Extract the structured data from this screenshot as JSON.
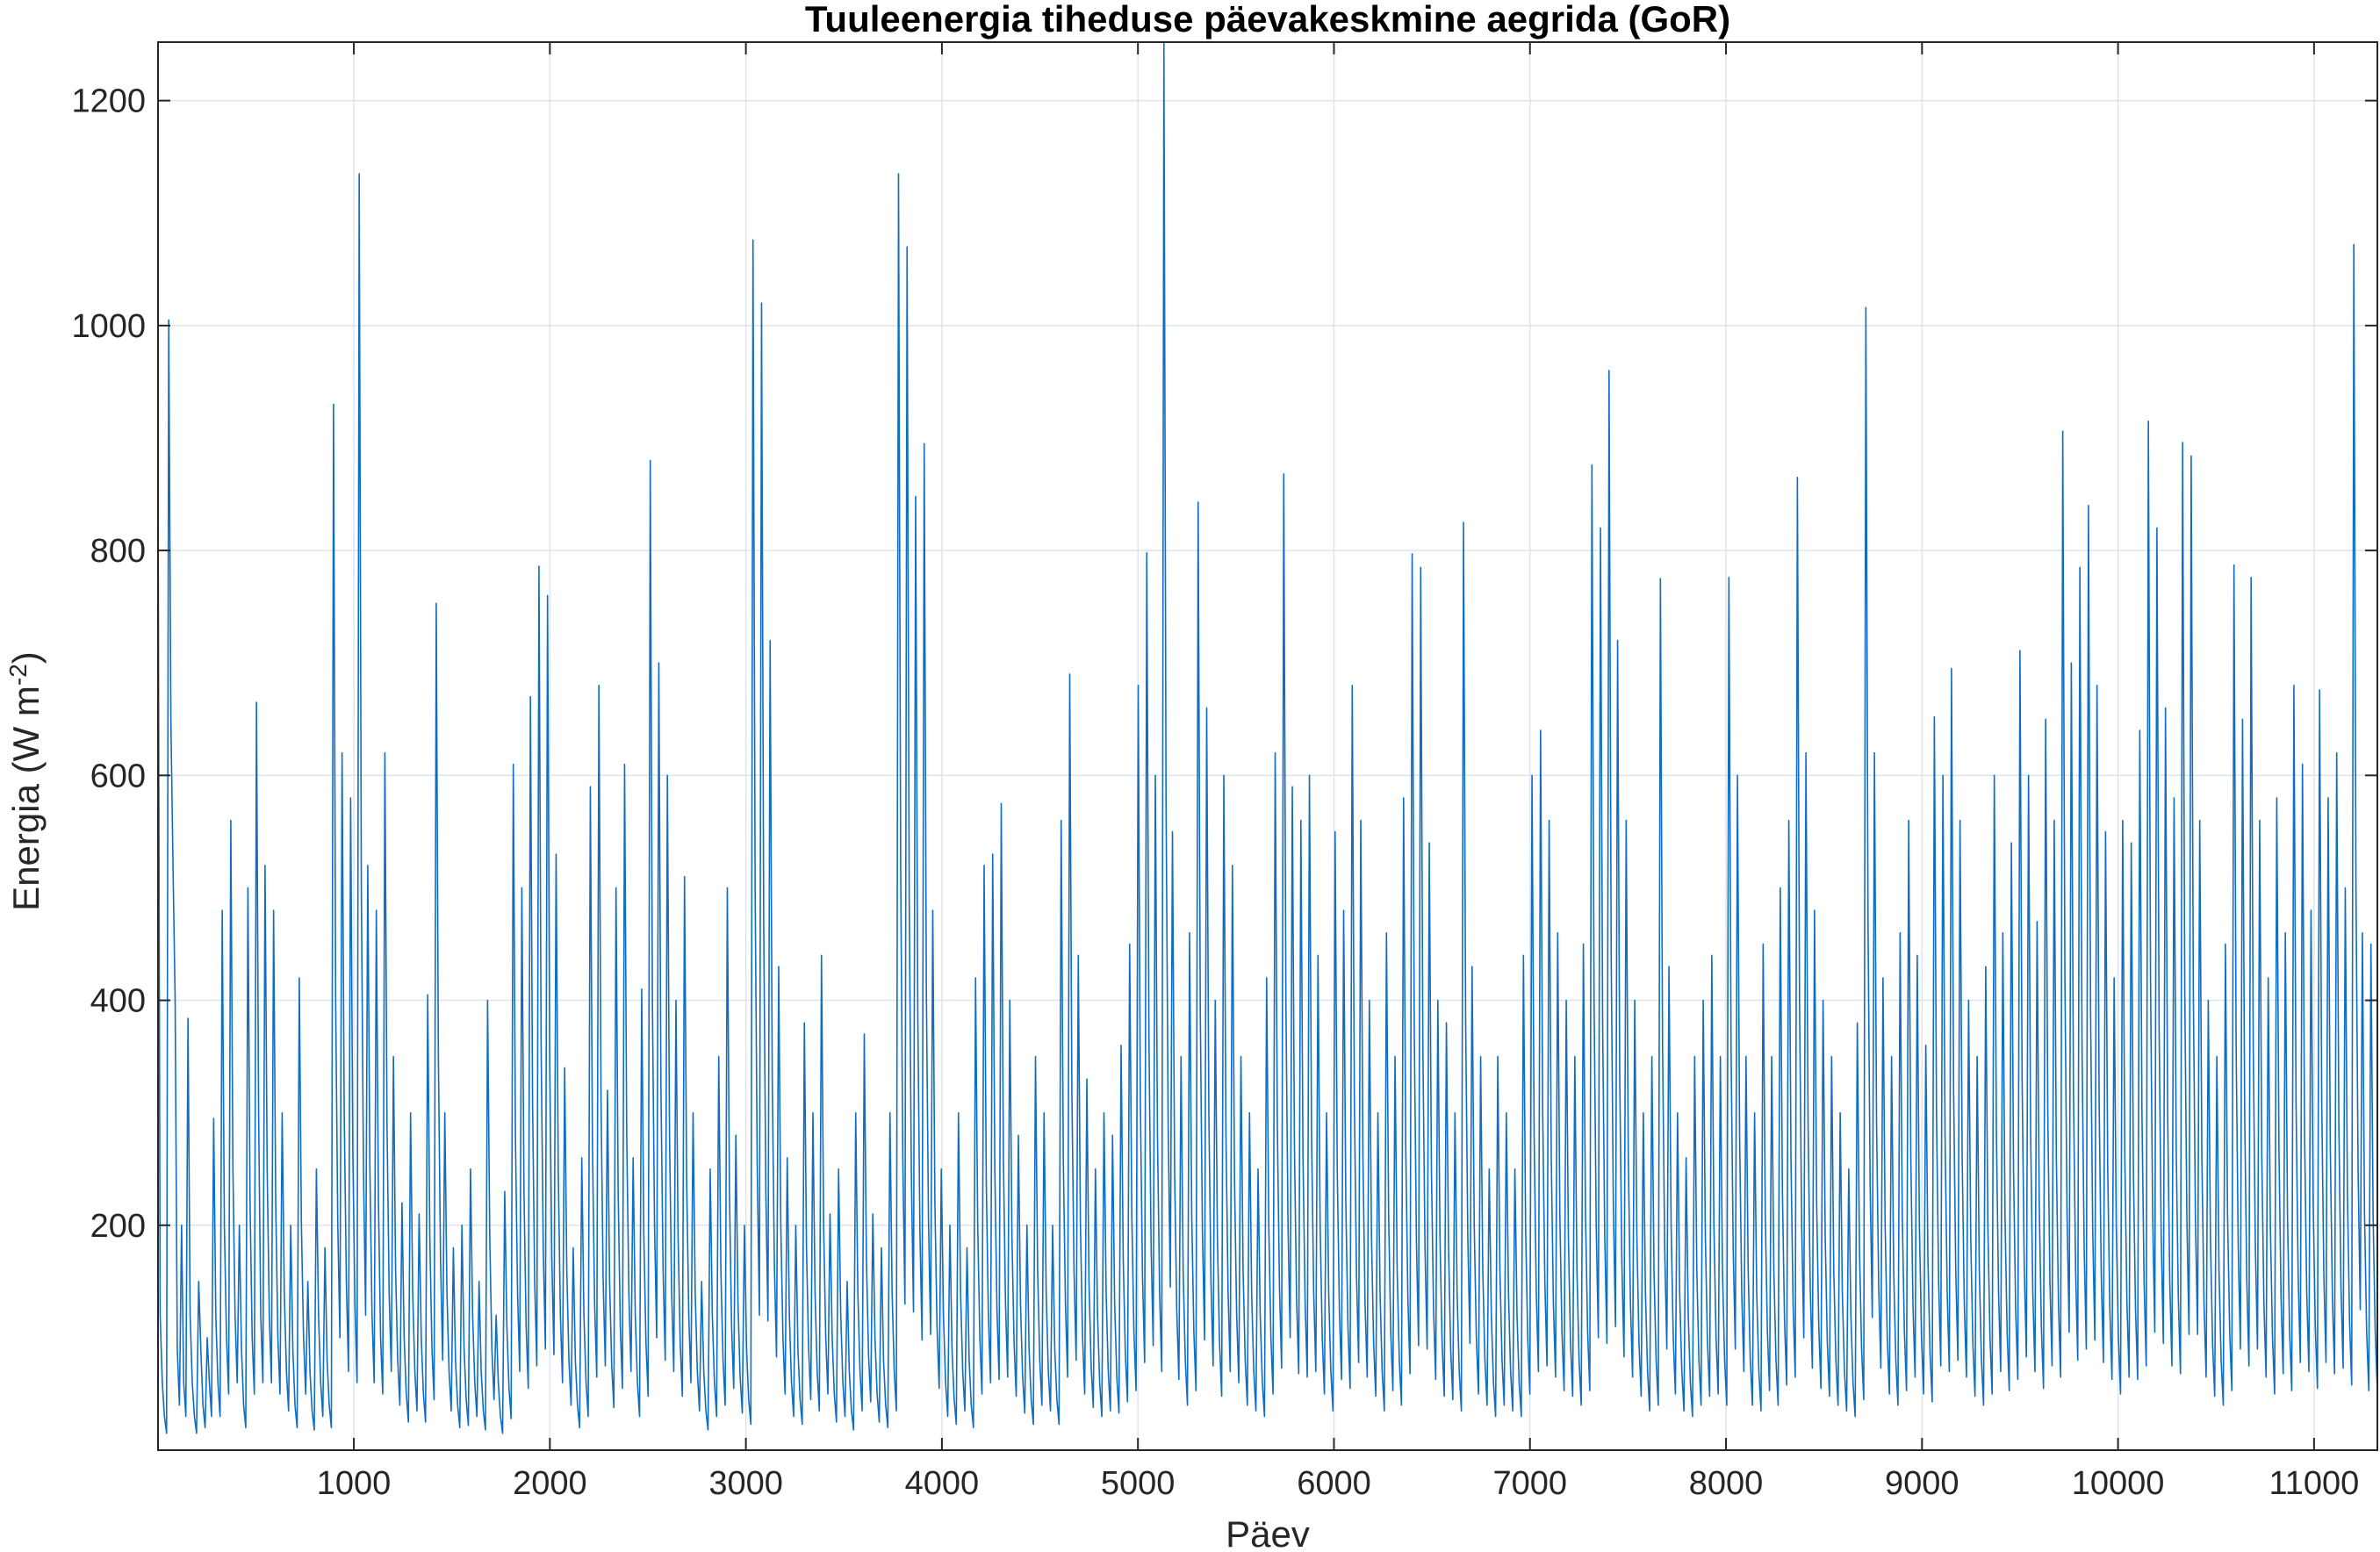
{
  "chart_data": {
    "type": "line",
    "title": "Tuuleenergia tiheduse päevakeskmine aegrida (GoR)",
    "xlabel": "Päev",
    "ylabel": "Energia  (W m",
    "ylabel_superscript": "-2",
    "ylabel_suffix": ")",
    "xlim": [
      1,
      11323
    ],
    "ylim": [
      0,
      1252
    ],
    "xticks": [
      1000,
      2000,
      3000,
      4000,
      5000,
      6000,
      7000,
      8000,
      9000,
      10000,
      11000
    ],
    "xtick_labels": [
      "1000",
      "2000",
      "3000",
      "4000",
      "5000",
      "6000",
      "7000",
      "8000",
      "9000",
      "10000",
      "11000"
    ],
    "yticks": [
      200,
      400,
      600,
      800,
      1000,
      1200
    ],
    "ytick_labels": [
      "200",
      "400",
      "600",
      "800",
      "1000",
      "1200"
    ],
    "grid": true,
    "line_color": "#0f6ec1",
    "series": [
      {
        "values": [
          880,
          120,
          60,
          30,
          15,
          1005,
          650,
          520,
          400,
          90,
          40,
          200,
          60,
          30,
          384,
          120,
          60,
          30,
          15,
          150,
          90,
          40,
          20,
          100,
          60,
          30,
          295,
          120,
          60,
          30,
          480,
          200,
          100,
          50,
          560,
          250,
          120,
          60,
          200,
          90,
          40,
          20,
          500,
          220,
          100,
          50,
          665,
          300,
          120,
          60,
          520,
          250,
          120,
          60,
          480,
          220,
          100,
          50,
          300,
          140,
          70,
          35,
          200,
          90,
          40,
          20,
          420,
          200,
          100,
          50,
          150,
          70,
          35,
          18,
          250,
          120,
          60,
          30,
          180,
          80,
          40,
          20,
          930,
          400,
          200,
          100,
          620,
          300,
          150,
          70,
          580,
          270,
          130,
          60,
          1135,
          500,
          250,
          120,
          520,
          250,
          120,
          60,
          480,
          220,
          100,
          50,
          620,
          290,
          140,
          70,
          350,
          160,
          80,
          40,
          220,
          100,
          50,
          25,
          300,
          140,
          70,
          35,
          210,
          100,
          50,
          25,
          405,
          190,
          90,
          45,
          753,
          350,
          170,
          80,
          300,
          140,
          70,
          35,
          180,
          80,
          40,
          20,
          200,
          90,
          45,
          22,
          250,
          120,
          60,
          30,
          150,
          70,
          35,
          18,
          400,
          190,
          90,
          45,
          120,
          60,
          30,
          15,
          230,
          110,
          55,
          28,
          610,
          280,
          140,
          70,
          500,
          230,
          110,
          55,
          670,
          310,
          150,
          75,
          786,
          360,
          180,
          90,
          760,
          350,
          170,
          85,
          530,
          250,
          120,
          60,
          340,
          160,
          80,
          40,
          180,
          80,
          40,
          20,
          260,
          120,
          60,
          30,
          590,
          270,
          130,
          65,
          680,
          310,
          150,
          75,
          320,
          150,
          75,
          38,
          500,
          230,
          110,
          55,
          610,
          280,
          140,
          70,
          260,
          120,
          60,
          30,
          410,
          190,
          95,
          48,
          880,
          400,
          200,
          100,
          700,
          320,
          160,
          80,
          600,
          280,
          140,
          70,
          400,
          190,
          95,
          48,
          510,
          240,
          120,
          60,
          300,
          140,
          70,
          35,
          150,
          70,
          35,
          18,
          250,
          120,
          60,
          30,
          350,
          160,
          80,
          40,
          500,
          230,
          110,
          55,
          280,
          130,
          65,
          33,
          200,
          90,
          45,
          23,
          1076,
          500,
          250,
          120,
          1020,
          470,
          230,
          115,
          720,
          330,
          165,
          83,
          430,
          200,
          100,
          50,
          260,
          120,
          60,
          30,
          200,
          90,
          45,
          23,
          380,
          180,
          90,
          45,
          300,
          140,
          70,
          35,
          440,
          200,
          100,
          50,
          210,
          100,
          50,
          25,
          250,
          120,
          60,
          30,
          150,
          70,
          35,
          18,
          300,
          140,
          70,
          35,
          370,
          170,
          85,
          43,
          210,
          100,
          50,
          25,
          180,
          80,
          40,
          20,
          300,
          140,
          70,
          35,
          1135,
          520,
          260,
          130,
          1070,
          490,
          245,
          123,
          848,
          390,
          195,
          98,
          895,
          410,
          205,
          103,
          480,
          220,
          110,
          55,
          250,
          120,
          60,
          30,
          200,
          90,
          45,
          23,
          300,
          140,
          70,
          35,
          180,
          80,
          40,
          20,
          420,
          200,
          100,
          50,
          520,
          240,
          120,
          60,
          530,
          250,
          125,
          63,
          575,
          260,
          130,
          65,
          400,
          190,
          95,
          48,
          280,
          130,
          65,
          33,
          200,
          90,
          45,
          23,
          350,
          160,
          80,
          40,
          300,
          140,
          70,
          35,
          200,
          90,
          45,
          23,
          560,
          260,
          130,
          65,
          690,
          320,
          160,
          80,
          440,
          200,
          100,
          50,
          330,
          150,
          75,
          38,
          250,
          120,
          60,
          30,
          300,
          140,
          70,
          35,
          280,
          130,
          65,
          33,
          360,
          170,
          85,
          43,
          450,
          210,
          105,
          53,
          680,
          310,
          155,
          78,
          798,
          370,
          185,
          93,
          600,
          280,
          140,
          70,
          1252,
          580,
          290,
          145,
          550,
          250,
          125,
          63,
          350,
          160,
          80,
          40,
          460,
          210,
          105,
          53,
          843,
          390,
          195,
          98,
          660,
          300,
          150,
          75,
          400,
          190,
          95,
          48,
          600,
          280,
          140,
          70,
          520,
          240,
          120,
          60,
          350,
          160,
          80,
          40,
          300,
          140,
          70,
          35,
          250,
          120,
          60,
          30,
          420,
          200,
          100,
          50,
          620,
          290,
          145,
          73,
          868,
          400,
          200,
          100,
          590,
          270,
          135,
          68,
          560,
          260,
          130,
          65,
          600,
          280,
          140,
          70,
          440,
          200,
          100,
          50,
          300,
          140,
          70,
          35,
          550,
          250,
          125,
          63,
          480,
          220,
          110,
          55,
          680,
          310,
          155,
          78,
          560,
          260,
          130,
          65,
          400,
          190,
          95,
          48,
          300,
          140,
          70,
          35,
          460,
          210,
          105,
          53,
          350,
          160,
          80,
          40,
          580,
          270,
          135,
          68,
          797,
          370,
          185,
          93,
          785,
          360,
          180,
          90,
          540,
          250,
          125,
          63,
          400,
          190,
          95,
          48,
          380,
          180,
          90,
          45,
          300,
          140,
          70,
          35,
          825,
          380,
          190,
          95,
          430,
          200,
          100,
          50,
          350,
          160,
          80,
          40,
          250,
          120,
          60,
          30,
          350,
          160,
          80,
          40,
          300,
          140,
          70,
          35,
          250,
          120,
          60,
          30,
          440,
          200,
          100,
          50,
          600,
          280,
          140,
          70,
          640,
          300,
          150,
          75,
          560,
          260,
          130,
          65,
          460,
          210,
          105,
          53,
          400,
          190,
          95,
          48,
          350,
          160,
          80,
          40,
          450,
          210,
          105,
          53,
          876,
          400,
          200,
          100,
          820,
          380,
          190,
          95,
          960,
          440,
          220,
          110,
          720,
          330,
          165,
          83,
          560,
          260,
          130,
          65,
          400,
          190,
          95,
          48,
          300,
          140,
          70,
          35,
          350,
          160,
          80,
          40,
          775,
          360,
          180,
          90,
          430,
          200,
          100,
          50,
          300,
          140,
          70,
          35,
          260,
          120,
          60,
          30,
          350,
          160,
          80,
          40,
          400,
          190,
          95,
          48,
          440,
          200,
          100,
          50,
          350,
          160,
          80,
          40,
          776,
          360,
          180,
          90,
          600,
          280,
          140,
          70,
          350,
          160,
          80,
          40,
          300,
          140,
          70,
          35,
          450,
          210,
          105,
          53,
          350,
          160,
          80,
          40,
          500,
          230,
          115,
          58,
          560,
          260,
          130,
          65,
          865,
          400,
          200,
          100,
          620,
          290,
          145,
          73,
          480,
          220,
          110,
          55,
          400,
          190,
          95,
          48,
          350,
          160,
          80,
          40,
          300,
          140,
          70,
          35,
          250,
          120,
          60,
          30,
          380,
          180,
          90,
          45,
          1016,
          470,
          235,
          118,
          620,
          290,
          145,
          73,
          420,
          200,
          100,
          50,
          350,
          160,
          80,
          40,
          460,
          210,
          105,
          53,
          560,
          260,
          130,
          65,
          440,
          200,
          100,
          50,
          360,
          170,
          85,
          43,
          652,
          300,
          150,
          75,
          600,
          280,
          140,
          70,
          695,
          320,
          160,
          80,
          560,
          260,
          130,
          65,
          400,
          190,
          95,
          48,
          350,
          160,
          80,
          40,
          430,
          200,
          100,
          50,
          600,
          280,
          140,
          70,
          460,
          210,
          105,
          53,
          540,
          250,
          125,
          63,
          711,
          330,
          165,
          83,
          600,
          280,
          140,
          70,
          470,
          220,
          110,
          55,
          650,
          300,
          150,
          75,
          560,
          260,
          130,
          65,
          906,
          420,
          210,
          105,
          700,
          320,
          160,
          80,
          785,
          360,
          180,
          90,
          840,
          390,
          195,
          98,
          680,
          310,
          155,
          78,
          550,
          250,
          125,
          63,
          420,
          200,
          100,
          50,
          560,
          260,
          130,
          65,
          540,
          250,
          125,
          63,
          640,
          300,
          150,
          75,
          915,
          420,
          210,
          105,
          820,
          380,
          190,
          95,
          660,
          300,
          150,
          75,
          580,
          270,
          135,
          68,
          896,
          410,
          205,
          103,
          884,
          410,
          205,
          103,
          560,
          260,
          130,
          65,
          400,
          190,
          95,
          48,
          350,
          160,
          80,
          40,
          450,
          210,
          105,
          53,
          787,
          360,
          180,
          90,
          650,
          300,
          150,
          75,
          776,
          360,
          180,
          90,
          560,
          260,
          130,
          65,
          420,
          200,
          100,
          50,
          580,
          270,
          135,
          68,
          460,
          210,
          105,
          53,
          680,
          310,
          155,
          78,
          610,
          280,
          140,
          70,
          480,
          220,
          110,
          55,
          676,
          310,
          155,
          78,
          580,
          270,
          135,
          68,
          620,
          290,
          145,
          73,
          500,
          230,
          115,
          58,
          1072,
          500,
          250,
          125,
          460,
          210,
          105,
          53,
          450,
          210,
          105,
          53
        ]
      }
    ]
  }
}
